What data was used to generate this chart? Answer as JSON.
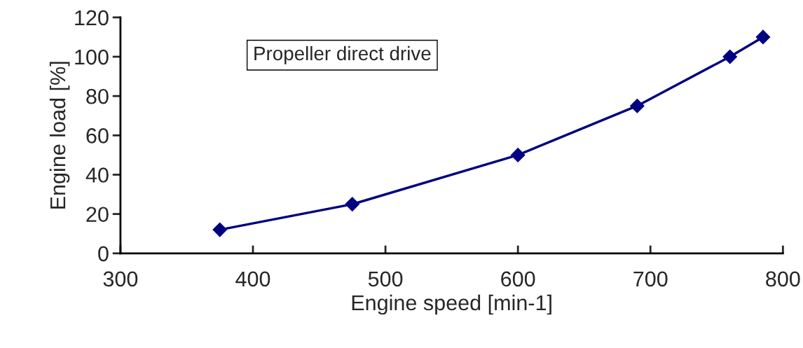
{
  "chart_data": {
    "type": "line",
    "xlabel": "Engine speed [min-1]",
    "ylabel": "Engine load [%]",
    "annotations": [
      "Propeller direct drive"
    ],
    "x": [
      375,
      475,
      600,
      690,
      760,
      785
    ],
    "series": [
      {
        "color": "#000080",
        "values": [
          12,
          25,
          50,
          75,
          100,
          110
        ]
      }
    ],
    "xlim": [
      300,
      800
    ],
    "xticks": [
      300,
      400,
      500,
      600,
      700,
      800
    ],
    "ylim": [
      0,
      120
    ],
    "yticks": [
      0,
      20,
      40,
      60,
      80,
      100,
      120
    ],
    "marker": "diamond",
    "line_style": "solid"
  }
}
